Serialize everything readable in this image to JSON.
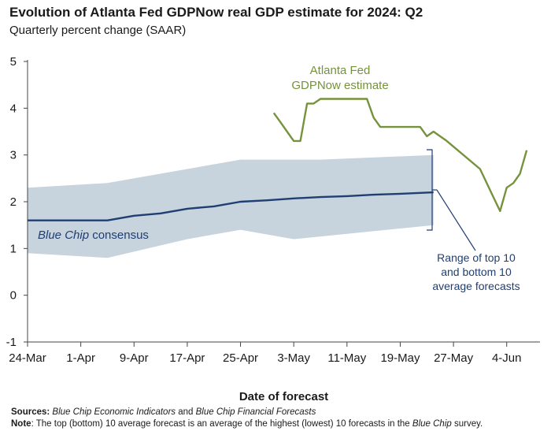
{
  "title": "Evolution of Atlanta Fed GDPNow real GDP estimate for 2024: Q2",
  "subtitle": "Quarterly percent change (SAAR)",
  "colors": {
    "gdpnow": "#76923c",
    "bluechip": "#1f3f73",
    "band": "#c7d3dd",
    "axis": "#444444",
    "text": "#1a1a1a"
  },
  "footnotes": {
    "sources_label": "Sources:",
    "sources_part1": "Blue Chip Economic Indicators",
    "sources_and": " and ",
    "sources_part2": "Blue Chip Financial Forecasts",
    "note_label": "Note",
    "note_text": ": The top (bottom) 10 average forecast is an average of the highest (lowest) 10 forecasts in the ",
    "note_italic": "Blue Chip",
    "note_end": " survey."
  },
  "chart_data": {
    "type": "line",
    "title": "Evolution of Atlanta Fed GDPNow real GDP estimate for 2024: Q2",
    "subtitle": "Quarterly percent change (SAAR)",
    "xlabel": "Date of forecast",
    "ylabel": "",
    "ylim": [
      -1,
      5
    ],
    "yticks": [
      "-1",
      "0",
      "1",
      "2",
      "3",
      "4",
      "5"
    ],
    "xlim": [
      "2024-03-24",
      "2024-06-09"
    ],
    "xticks": [
      {
        "date": "2024-03-24",
        "label": "24-Mar"
      },
      {
        "date": "2024-04-01",
        "label": "1-Apr"
      },
      {
        "date": "2024-04-09",
        "label": "9-Apr"
      },
      {
        "date": "2024-04-17",
        "label": "17-Apr"
      },
      {
        "date": "2024-04-25",
        "label": "25-Apr"
      },
      {
        "date": "2024-05-03",
        "label": "3-May"
      },
      {
        "date": "2024-05-11",
        "label": "11-May"
      },
      {
        "date": "2024-05-19",
        "label": "19-May"
      },
      {
        "date": "2024-05-27",
        "label": "27-May"
      },
      {
        "date": "2024-06-04",
        "label": "4-Jun"
      }
    ],
    "grid": false,
    "series": [
      {
        "name": "GDPNow",
        "label_lines": [
          "Atlanta Fed",
          "GDPNow estimate"
        ],
        "points": [
          [
            "2024-04-30",
            3.9
          ],
          [
            "2024-05-01",
            3.7
          ],
          [
            "2024-05-02",
            3.5
          ],
          [
            "2024-05-03",
            3.3
          ],
          [
            "2024-05-04",
            3.3
          ],
          [
            "2024-05-05",
            4.1
          ],
          [
            "2024-05-06",
            4.1
          ],
          [
            "2024-05-07",
            4.2
          ],
          [
            "2024-05-08",
            4.2
          ],
          [
            "2024-05-14",
            4.2
          ],
          [
            "2024-05-15",
            3.8
          ],
          [
            "2024-05-16",
            3.6
          ],
          [
            "2024-05-22",
            3.6
          ],
          [
            "2024-05-23",
            3.4
          ],
          [
            "2024-05-24",
            3.5
          ],
          [
            "2024-05-26",
            3.3
          ],
          [
            "2024-05-31",
            2.7
          ],
          [
            "2024-06-02",
            2.1
          ],
          [
            "2024-06-03",
            1.8
          ],
          [
            "2024-06-04",
            2.3
          ],
          [
            "2024-06-05",
            2.4
          ],
          [
            "2024-06-06",
            2.6
          ],
          [
            "2024-06-07",
            3.1
          ]
        ]
      },
      {
        "name": "Blue Chip consensus",
        "label_italic": "Blue Chip",
        "label_rest": " consensus",
        "points": [
          [
            "2024-03-24",
            1.6
          ],
          [
            "2024-04-05",
            1.6
          ],
          [
            "2024-04-09",
            1.7
          ],
          [
            "2024-04-13",
            1.75
          ],
          [
            "2024-04-17",
            1.85
          ],
          [
            "2024-04-21",
            1.9
          ],
          [
            "2024-04-25",
            2.0
          ],
          [
            "2024-04-29",
            2.03
          ],
          [
            "2024-05-03",
            2.07
          ],
          [
            "2024-05-07",
            2.1
          ],
          [
            "2024-05-11",
            2.12
          ],
          [
            "2024-05-15",
            2.15
          ],
          [
            "2024-05-19",
            2.17
          ],
          [
            "2024-05-24",
            2.2
          ]
        ]
      }
    ],
    "band": {
      "name": "Range of top 10 and bottom 10 average forecasts",
      "label_lines": [
        "Range of top 10",
        "and bottom 10",
        "average forecasts"
      ],
      "upper": [
        [
          "2024-03-24",
          2.3
        ],
        [
          "2024-04-05",
          2.4
        ],
        [
          "2024-04-17",
          2.7
        ],
        [
          "2024-04-25",
          2.9
        ],
        [
          "2024-05-07",
          2.9
        ],
        [
          "2024-05-24",
          3.0
        ]
      ],
      "lower": [
        [
          "2024-03-24",
          0.9
        ],
        [
          "2024-04-05",
          0.8
        ],
        [
          "2024-04-17",
          1.2
        ],
        [
          "2024-04-25",
          1.4
        ],
        [
          "2024-05-03",
          1.2
        ],
        [
          "2024-05-24",
          1.5
        ]
      ]
    }
  }
}
